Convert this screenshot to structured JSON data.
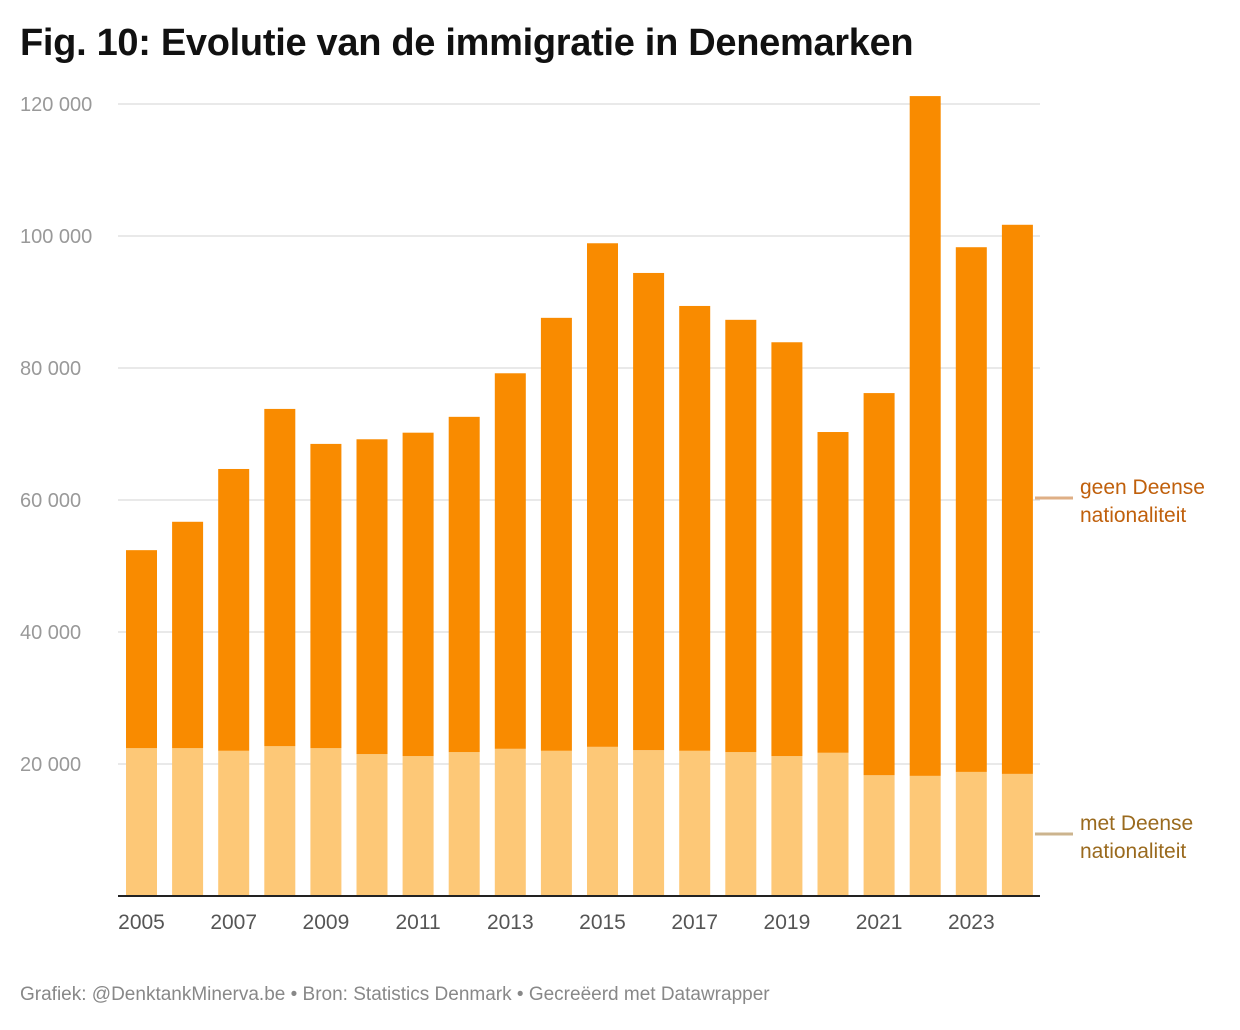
{
  "title": "Fig. 10: Evolutie van de immigratie in Denemarken",
  "footer": "Grafiek: @DenktankMinerva.be • Bron: Statistics Denmark • Gecreëerd met Datawrapper",
  "chart_data": {
    "type": "bar",
    "stacked": true,
    "title": "Fig. 10: Evolutie van de immigratie in Denemarken",
    "xlabel": "",
    "ylabel": "",
    "ylim": [
      0,
      120000
    ],
    "yticks": [
      20000,
      40000,
      60000,
      80000,
      100000,
      120000
    ],
    "ytick_labels": [
      "20 000",
      "40 000",
      "60 000",
      "80 000",
      "100 000",
      "120 000"
    ],
    "grid": true,
    "legend_placement": "right (direct labels)",
    "categories": [
      "2005",
      "2006",
      "2007",
      "2008",
      "2009",
      "2010",
      "2011",
      "2012",
      "2013",
      "2014",
      "2015",
      "2016",
      "2017",
      "2018",
      "2019",
      "2020",
      "2021",
      "2022",
      "2023",
      "2024"
    ],
    "xtick_labels": [
      "2005",
      "2007",
      "2009",
      "2011",
      "2013",
      "2015",
      "2017",
      "2019",
      "2021",
      "2023"
    ],
    "series": [
      {
        "name": "met Deense nationaliteit",
        "color": "#fdc877",
        "label_color": "#9a6a1e",
        "values": [
          22400,
          22400,
          22000,
          22700,
          22400,
          21500,
          21200,
          21800,
          22300,
          22000,
          22600,
          22100,
          22000,
          21800,
          21200,
          21700,
          18300,
          18200,
          18800,
          18500
        ]
      },
      {
        "name": "geen Deense nationaliteit",
        "color": "#f98b00",
        "label_color": "#c0600c",
        "values": [
          30000,
          34300,
          42700,
          51100,
          46100,
          47700,
          49000,
          50800,
          56900,
          65600,
          76300,
          72300,
          67400,
          65500,
          62700,
          48600,
          57900,
          103000,
          79500,
          83200
        ]
      }
    ]
  }
}
